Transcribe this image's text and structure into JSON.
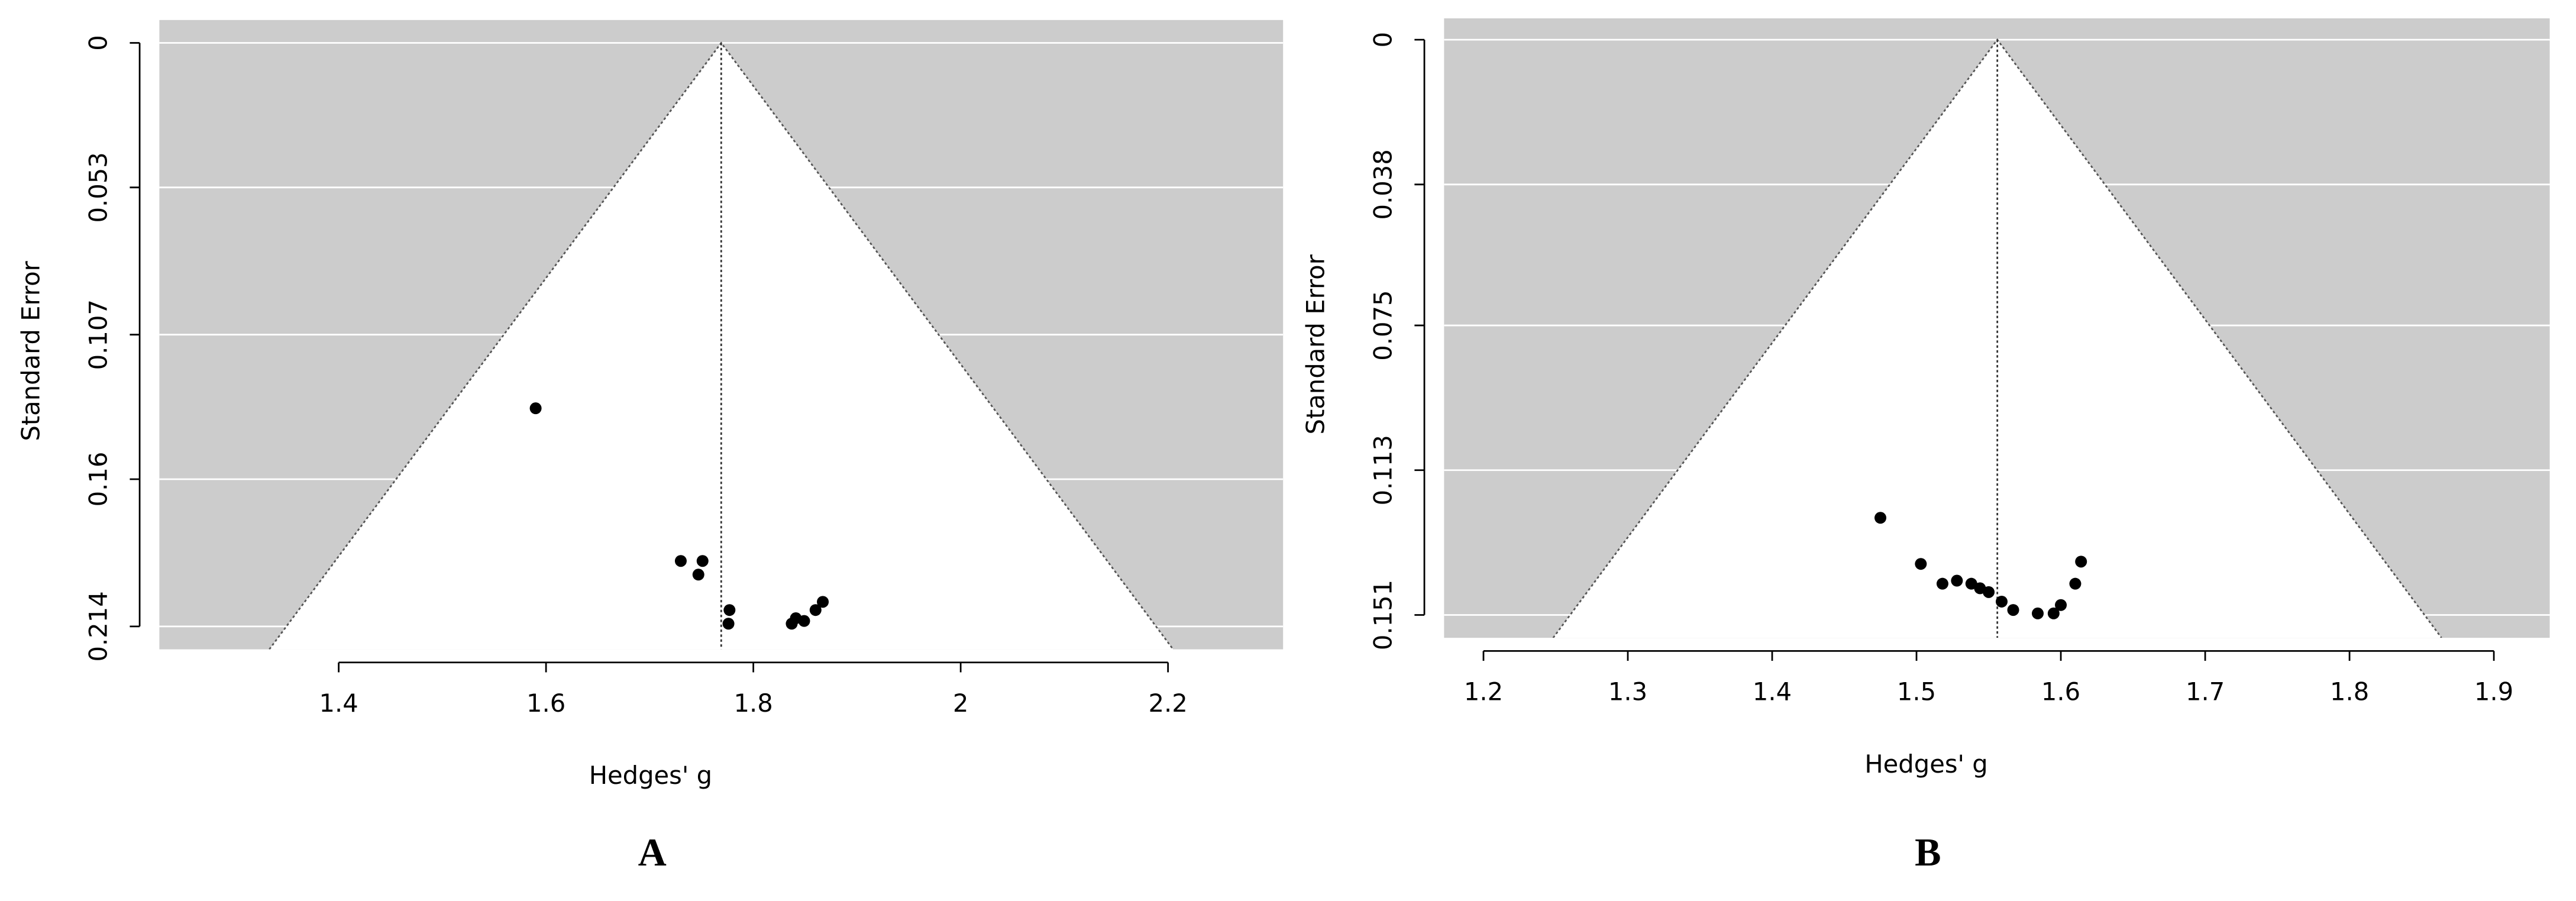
{
  "chart_data": [
    {
      "type": "scatter",
      "panel_label": "A",
      "x_label": "Hedges' g",
      "y_label": "Standard Error",
      "x": [
        1.59,
        1.73,
        1.751,
        1.747,
        1.777,
        1.776,
        1.837,
        1.841,
        1.849,
        1.86,
        1.867
      ],
      "values": [
        0.134,
        0.19,
        0.19,
        0.195,
        0.208,
        0.213,
        0.213,
        0.211,
        0.212,
        0.208,
        0.205
      ],
      "color": "#000000",
      "summary_effect": 1.769,
      "xlim": [
        1.227,
        2.311
      ],
      "xticks": [
        1.4,
        1.6,
        1.8,
        2,
        2.2
      ],
      "ylim": [
        -0.0084,
        0.2224
      ],
      "yticks": [
        0,
        0.053,
        0.107,
        0.16,
        0.214
      ],
      "y_reversed": true,
      "grid": true
    },
    {
      "type": "scatter",
      "panel_label": "B",
      "x_label": "Hedges' g",
      "y_label": "Standard Error",
      "x": [
        1.475,
        1.503,
        1.518,
        1.528,
        1.538,
        1.544,
        1.55,
        1.559,
        1.567,
        1.584,
        1.595,
        1.6,
        1.61,
        1.614
      ],
      "values": [
        0.1255,
        0.1376,
        0.1428,
        0.142,
        0.1428,
        0.144,
        0.145,
        0.1475,
        0.1497,
        0.1506,
        0.1506,
        0.1484,
        0.1428,
        0.137
      ],
      "color": "#000000",
      "summary_effect": 1.556,
      "xlim": [
        1.1727,
        1.9387
      ],
      "xticks": [
        1.2,
        1.3,
        1.4,
        1.5,
        1.6,
        1.7,
        1.8,
        1.9
      ],
      "ylim": [
        -0.0056,
        0.157
      ],
      "yticks": [
        0,
        0.038,
        0.075,
        0.113,
        0.151
      ],
      "y_reversed": true,
      "grid": true
    }
  ]
}
